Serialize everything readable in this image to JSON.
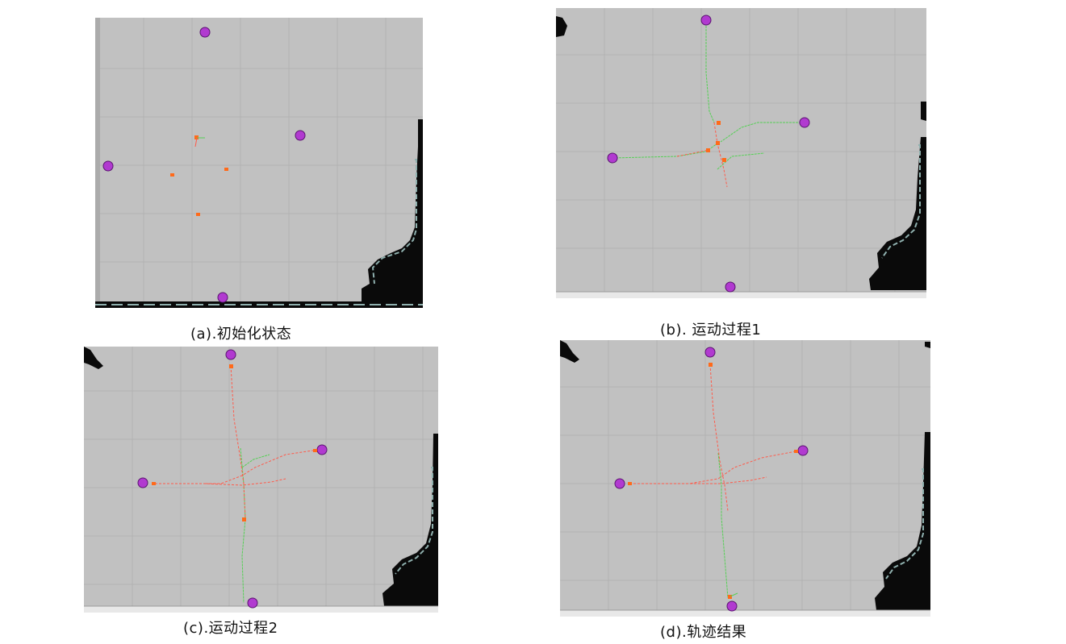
{
  "figure": {
    "panels": [
      {
        "id": "a",
        "caption": "(a).初始化状态"
      },
      {
        "id": "b",
        "caption": "(b). 运动过程1"
      },
      {
        "id": "c",
        "caption": "(c).运动过程2"
      },
      {
        "id": "d",
        "caption": "(d).轨迹结果"
      }
    ]
  },
  "colors": {
    "map_free": "#c1c1c1",
    "grid_line": "#b2b2b2",
    "obstacle": "#0a0a0a",
    "obstacle_edge": "#8fb0ae",
    "goal_marker": "#b13ad0",
    "robot": "#ff6a1a",
    "planned_path": "#ff5a4a",
    "traveled_path": "#55d055"
  },
  "icons": {
    "goal": "magenta-sphere-goal-icon",
    "robot": "orange-robot-marker-icon"
  }
}
